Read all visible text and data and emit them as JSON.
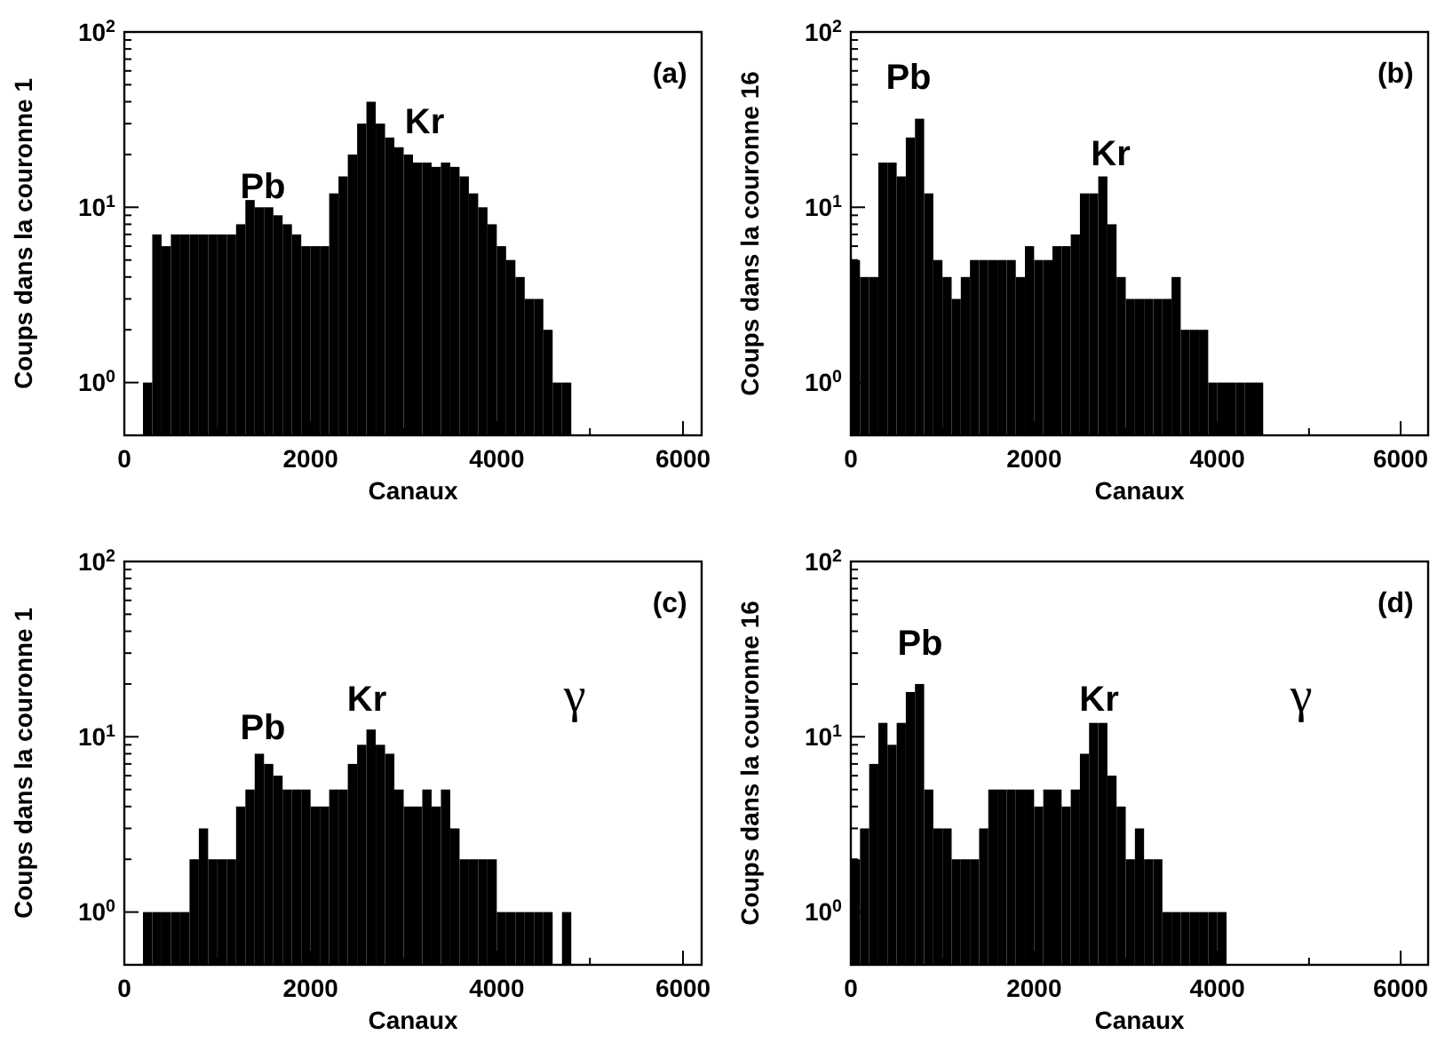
{
  "chart_data": [
    {
      "type": "histogram",
      "xlabel": "Canaux",
      "ylabel": "Coups dans la couronne 1",
      "log": "y",
      "xlim": [
        0,
        6200
      ],
      "ylim": [
        0.5,
        100
      ],
      "xticks": [
        0,
        {
          "value": 1000,
          "label": null
        },
        2000,
        {
          "value": 3000,
          "label": null
        },
        4000,
        {
          "value": 5000,
          "label": null
        },
        6000
      ],
      "yticks": [
        {
          "value": 1,
          "label": "10$^{0}$"
        },
        {
          "value": 2,
          "label": null
        },
        {
          "value": 3,
          "label": null
        },
        {
          "value": 4,
          "label": null
        },
        {
          "value": 5,
          "label": null
        },
        {
          "value": 6,
          "label": null
        },
        {
          "value": 7,
          "label": null
        },
        {
          "value": 8,
          "label": null
        },
        {
          "value": 9,
          "label": null
        },
        {
          "value": 10,
          "label": "10$^{1}$"
        },
        {
          "value": 20,
          "label": null
        },
        {
          "value": 30,
          "label": null
        },
        {
          "value": 40,
          "label": null
        },
        {
          "value": 50,
          "label": null
        },
        {
          "value": 60,
          "label": null
        },
        {
          "value": 70,
          "label": null
        },
        {
          "value": 80,
          "label": null
        },
        {
          "value": 90,
          "label": null
        },
        {
          "value": 100,
          "label": "10$^{2}$"
        }
      ],
      "bins": [
        200,
        300,
        400,
        500,
        600,
        700,
        800,
        900,
        1000,
        1100,
        1200,
        1300,
        1400,
        1500,
        1600,
        1700,
        1800,
        1900,
        2000,
        2100,
        2200,
        2300,
        2400,
        2500,
        2600,
        2700,
        2800,
        2900,
        3000,
        3100,
        3200,
        3300,
        3400,
        3500,
        3600,
        3700,
        3800,
        3900,
        4000,
        4100,
        4200,
        4300,
        4400,
        4500,
        4600,
        4700,
        4800
      ],
      "values": [
        1,
        7,
        6,
        7,
        7,
        7,
        7,
        7,
        7,
        7,
        8,
        11,
        10,
        10,
        9,
        8,
        7,
        6,
        6,
        6,
        12,
        15,
        20,
        30,
        40,
        30,
        25,
        22,
        20,
        18,
        18,
        17,
        18,
        17,
        15,
        12,
        10,
        8,
        6,
        5,
        4,
        3,
        3,
        2,
        1,
        1
      ],
      "color": "#000000",
      "annotations": [
        "(a)",
        "Pb",
        "Kr"
      ]
    },
    {
      "type": "histogram",
      "xlabel": "Canaux",
      "ylabel": "Coups dans la couronne 16",
      "log": "y",
      "xlim": [
        0,
        6300
      ],
      "ylim": [
        0.5,
        100
      ],
      "xticks": [
        0,
        {
          "value": 1000,
          "label": null
        },
        2000,
        {
          "value": 3000,
          "label": null
        },
        4000,
        {
          "value": 5000,
          "label": null
        },
        6000
      ],
      "yticks": [
        {
          "value": 1,
          "label": "10$^{0}$"
        },
        {
          "value": 2,
          "label": null
        },
        {
          "value": 3,
          "label": null
        },
        {
          "value": 4,
          "label": null
        },
        {
          "value": 5,
          "label": null
        },
        {
          "value": 6,
          "label": null
        },
        {
          "value": 7,
          "label": null
        },
        {
          "value": 8,
          "label": null
        },
        {
          "value": 9,
          "label": null
        },
        {
          "value": 10,
          "label": "10$^{1}$"
        },
        {
          "value": 20,
          "label": null
        },
        {
          "value": 30,
          "label": null
        },
        {
          "value": 40,
          "label": null
        },
        {
          "value": 50,
          "label": null
        },
        {
          "value": 60,
          "label": null
        },
        {
          "value": 70,
          "label": null
        },
        {
          "value": 80,
          "label": null
        },
        {
          "value": 90,
          "label": null
        },
        {
          "value": 100,
          "label": "10$^{2}$"
        }
      ],
      "bins": [
        0,
        100,
        200,
        300,
        400,
        500,
        600,
        700,
        800,
        900,
        1000,
        1100,
        1200,
        1300,
        1400,
        1500,
        1600,
        1700,
        1800,
        1900,
        2000,
        2100,
        2200,
        2300,
        2400,
        2500,
        2600,
        2700,
        2800,
        2900,
        3000,
        3100,
        3200,
        3300,
        3400,
        3500,
        3600,
        3700,
        3800,
        3900,
        4000,
        4100,
        4200,
        4300,
        4400,
        4500
      ],
      "values": [
        5,
        4,
        4,
        18,
        18,
        15,
        25,
        32,
        12,
        5,
        4,
        3,
        4,
        5,
        5,
        5,
        5,
        5,
        4,
        6,
        5,
        5,
        6,
        6,
        7,
        12,
        12,
        15,
        8,
        4,
        3,
        3,
        3,
        3,
        3,
        4,
        2,
        2,
        2,
        1,
        1,
        1,
        1,
        1,
        1
      ],
      "color": "#000000",
      "annotations": [
        "(b)",
        "Pb",
        "Kr"
      ]
    },
    {
      "type": "histogram",
      "xlabel": "Canaux",
      "ylabel": "Coups dans la couronne 1",
      "log": "y",
      "xlim": [
        0,
        6200
      ],
      "ylim": [
        0.5,
        100
      ],
      "xticks": [
        0,
        {
          "value": 1000,
          "label": null
        },
        2000,
        {
          "value": 3000,
          "label": null
        },
        4000,
        {
          "value": 5000,
          "label": null
        },
        6000
      ],
      "yticks": [
        {
          "value": 1,
          "label": "10$^{0}$"
        },
        {
          "value": 2,
          "label": null
        },
        {
          "value": 3,
          "label": null
        },
        {
          "value": 4,
          "label": null
        },
        {
          "value": 5,
          "label": null
        },
        {
          "value": 6,
          "label": null
        },
        {
          "value": 7,
          "label": null
        },
        {
          "value": 8,
          "label": null
        },
        {
          "value": 9,
          "label": null
        },
        {
          "value": 10,
          "label": "10$^{1}$"
        },
        {
          "value": 20,
          "label": null
        },
        {
          "value": 30,
          "label": null
        },
        {
          "value": 40,
          "label": null
        },
        {
          "value": 50,
          "label": null
        },
        {
          "value": 60,
          "label": null
        },
        {
          "value": 70,
          "label": null
        },
        {
          "value": 80,
          "label": null
        },
        {
          "value": 90,
          "label": null
        },
        {
          "value": 100,
          "label": "10$^{2}$"
        }
      ],
      "bins": [
        200,
        300,
        400,
        500,
        600,
        700,
        800,
        900,
        1000,
        1100,
        1200,
        1300,
        1400,
        1500,
        1600,
        1700,
        1800,
        1900,
        2000,
        2100,
        2200,
        2300,
        2400,
        2500,
        2600,
        2700,
        2800,
        2900,
        3000,
        3100,
        3200,
        3300,
        3400,
        3500,
        3600,
        3700,
        3800,
        3900,
        4000,
        4100,
        4200,
        4300,
        4400,
        4500,
        4600,
        4700,
        4800
      ],
      "values": [
        1,
        1,
        1,
        1,
        1,
        2,
        3,
        2,
        2,
        2,
        4,
        5,
        8,
        7,
        6,
        5,
        5,
        5,
        4,
        4,
        5,
        5,
        7,
        9,
        11,
        9,
        8,
        5,
        4,
        4,
        5,
        4,
        5,
        3,
        2,
        2,
        2,
        2,
        1,
        1,
        1,
        1,
        1,
        1,
        null,
        1
      ],
      "color": "#000000",
      "annotations": [
        "(c)",
        "Pb",
        "Kr",
        "γ"
      ]
    },
    {
      "type": "histogram",
      "xlabel": "Canaux",
      "ylabel": "Coups dans la couronne 16",
      "log": "y",
      "xlim": [
        0,
        6300
      ],
      "ylim": [
        0.5,
        100
      ],
      "xticks": [
        0,
        {
          "value": 1000,
          "label": null
        },
        2000,
        {
          "value": 3000,
          "label": null
        },
        4000,
        {
          "value": 5000,
          "label": null
        },
        6000
      ],
      "yticks": [
        {
          "value": 1,
          "label": "10$^{0}$"
        },
        {
          "value": 2,
          "label": null
        },
        {
          "value": 3,
          "label": null
        },
        {
          "value": 4,
          "label": null
        },
        {
          "value": 5,
          "label": null
        },
        {
          "value": 6,
          "label": null
        },
        {
          "value": 7,
          "label": null
        },
        {
          "value": 8,
          "label": null
        },
        {
          "value": 9,
          "label": null
        },
        {
          "value": 10,
          "label": "10$^{1}$"
        },
        {
          "value": 20,
          "label": null
        },
        {
          "value": 30,
          "label": null
        },
        {
          "value": 40,
          "label": null
        },
        {
          "value": 50,
          "label": null
        },
        {
          "value": 60,
          "label": null
        },
        {
          "value": 70,
          "label": null
        },
        {
          "value": 80,
          "label": null
        },
        {
          "value": 90,
          "label": null
        },
        {
          "value": 100,
          "label": "10$^{2}$"
        }
      ],
      "bins": [
        0,
        100,
        200,
        300,
        400,
        500,
        600,
        700,
        800,
        900,
        1000,
        1100,
        1200,
        1300,
        1400,
        1500,
        1600,
        1700,
        1800,
        1900,
        2000,
        2100,
        2200,
        2300,
        2400,
        2500,
        2600,
        2700,
        2800,
        2900,
        3000,
        3100,
        3200,
        3300,
        3400,
        3500,
        3600,
        3700,
        3800,
        3900,
        4000,
        4100
      ],
      "values": [
        2,
        3,
        7,
        12,
        9,
        12,
        18,
        20,
        5,
        3,
        3,
        2,
        2,
        2,
        3,
        5,
        5,
        5,
        5,
        5,
        4,
        5,
        5,
        4,
        5,
        8,
        12,
        12,
        6,
        4,
        2,
        3,
        2,
        2,
        1,
        1,
        1,
        1,
        1,
        1,
        1
      ],
      "color": "#000000",
      "annotations": [
        "(d)",
        "Pb",
        "Kr",
        "γ"
      ]
    }
  ]
}
